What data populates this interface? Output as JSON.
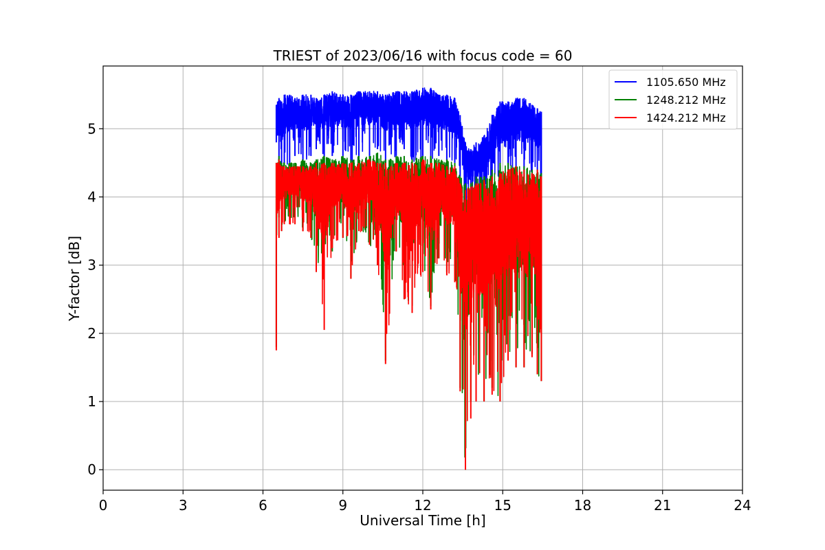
{
  "chart_data": {
    "type": "line",
    "title": "TRIEST of 2023/06/16 with focus code = 60",
    "xlabel": "Universal Time [h]",
    "ylabel": "Y-factor [dB]",
    "xlim": [
      0,
      24
    ],
    "ylim": [
      -0.3,
      5.92
    ],
    "xticks": [
      0,
      3,
      6,
      9,
      12,
      15,
      18,
      21,
      24
    ],
    "yticks": [
      0,
      1,
      2,
      3,
      4,
      5
    ],
    "grid": true,
    "legend": "top-right",
    "series": [
      {
        "name": "1105.650 MHz",
        "color": "#0000ff",
        "x": [
          6.5,
          6.55,
          6.6,
          6.7,
          6.8,
          7.0,
          7.2,
          7.5,
          7.8,
          8.0,
          8.3,
          8.6,
          9.0,
          9.3,
          9.6,
          10.0,
          10.3,
          10.6,
          11.0,
          11.3,
          11.6,
          12.0,
          12.3,
          12.6,
          12.9,
          13.2,
          13.4,
          13.6,
          13.8,
          14.0,
          14.3,
          14.6,
          14.9,
          15.2,
          15.5,
          15.8,
          16.1,
          16.3,
          16.45
        ],
        "min": [
          4.8,
          4.9,
          4.4,
          4.3,
          4.4,
          4.5,
          4.6,
          4.5,
          4.6,
          4.7,
          4.5,
          4.6,
          4.6,
          4.5,
          4.6,
          4.6,
          4.7,
          4.5,
          4.6,
          4.7,
          4.5,
          4.6,
          4.5,
          4.6,
          4.5,
          4.5,
          4.3,
          3.7,
          3.7,
          3.8,
          3.9,
          4.0,
          4.2,
          4.3,
          4.3,
          4.2,
          4.3,
          4.2,
          4.3
        ],
        "max": [
          5.35,
          5.4,
          5.45,
          5.4,
          5.5,
          5.5,
          5.45,
          5.5,
          5.5,
          5.45,
          5.5,
          5.55,
          5.5,
          5.5,
          5.55,
          5.55,
          5.55,
          5.5,
          5.55,
          5.55,
          5.55,
          5.6,
          5.6,
          5.5,
          5.5,
          5.45,
          5.2,
          4.8,
          4.7,
          4.8,
          4.9,
          5.2,
          5.4,
          5.4,
          5.45,
          5.45,
          5.35,
          5.3,
          5.25
        ]
      },
      {
        "name": "1248.212 MHz",
        "color": "#008000",
        "x": [
          6.5,
          6.55,
          6.6,
          6.7,
          6.8,
          7.0,
          7.2,
          7.5,
          7.8,
          8.0,
          8.3,
          8.6,
          9.0,
          9.3,
          9.6,
          10.0,
          10.3,
          10.6,
          11.0,
          11.3,
          11.6,
          12.0,
          12.3,
          12.6,
          12.9,
          13.2,
          13.4,
          13.6,
          13.8,
          14.0,
          14.3,
          14.6,
          14.9,
          15.2,
          15.5,
          15.8,
          16.1,
          16.3,
          16.45
        ],
        "min": [
          1.8,
          3.8,
          3.7,
          3.5,
          3.6,
          3.7,
          3.6,
          3.5,
          3.4,
          2.9,
          3.3,
          3.2,
          3.4,
          2.8,
          3.5,
          3.3,
          3.0,
          1.6,
          3.2,
          2.5,
          2.3,
          2.9,
          2.4,
          3.1,
          2.9,
          2.8,
          1.2,
          0.0,
          1.0,
          1.5,
          1.0,
          1.2,
          1.0,
          1.6,
          1.5,
          1.5,
          1.7,
          1.4,
          1.3
        ],
        "max": [
          4.5,
          4.5,
          4.6,
          4.5,
          4.5,
          4.5,
          4.5,
          4.55,
          4.5,
          4.55,
          4.6,
          4.55,
          4.6,
          4.55,
          4.6,
          4.6,
          4.65,
          4.55,
          4.6,
          4.6,
          4.55,
          4.6,
          4.6,
          4.55,
          4.55,
          4.5,
          4.3,
          4.2,
          4.2,
          4.3,
          4.3,
          4.4,
          4.5,
          4.5,
          4.45,
          4.45,
          4.4,
          4.4,
          4.35
        ]
      },
      {
        "name": "1424.212 MHz",
        "color": "#ff0000",
        "x": [
          6.5,
          6.55,
          6.6,
          6.7,
          6.8,
          7.0,
          7.2,
          7.5,
          7.8,
          8.0,
          8.3,
          8.6,
          9.0,
          9.3,
          9.6,
          10.0,
          10.3,
          10.6,
          11.0,
          11.3,
          11.6,
          12.0,
          12.3,
          12.6,
          12.9,
          13.2,
          13.4,
          13.6,
          13.8,
          14.0,
          14.3,
          14.6,
          14.9,
          15.2,
          15.5,
          15.8,
          16.1,
          16.3,
          16.45
        ],
        "min": [
          1.75,
          3.8,
          3.4,
          3.5,
          3.6,
          3.6,
          3.6,
          3.5,
          3.4,
          2.9,
          2.05,
          3.25,
          3.4,
          2.8,
          3.5,
          3.3,
          3.0,
          1.55,
          3.2,
          2.5,
          2.3,
          2.9,
          2.35,
          3.1,
          2.85,
          2.75,
          1.15,
          0.0,
          0.75,
          1.0,
          1.0,
          1.1,
          1.0,
          1.6,
          1.5,
          1.5,
          1.65,
          1.4,
          1.3
        ],
        "max": [
          4.5,
          4.5,
          4.55,
          4.45,
          4.45,
          4.45,
          4.45,
          4.45,
          4.45,
          4.5,
          4.5,
          4.5,
          4.5,
          4.5,
          4.5,
          4.55,
          4.5,
          4.5,
          4.5,
          4.5,
          4.5,
          4.55,
          4.5,
          4.5,
          4.45,
          4.45,
          4.2,
          4.1,
          4.15,
          4.2,
          4.25,
          4.3,
          4.35,
          4.4,
          4.45,
          4.4,
          4.35,
          4.4,
          4.3
        ]
      }
    ]
  }
}
